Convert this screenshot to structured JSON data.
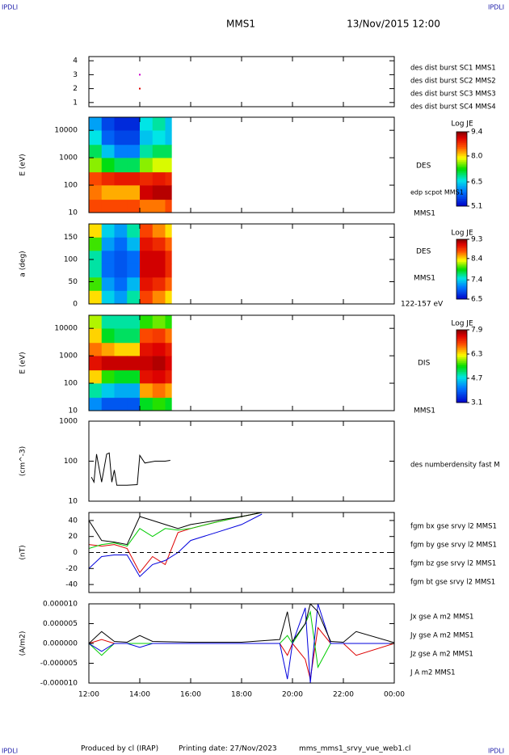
{
  "header": {
    "corner_label": "IPDLI",
    "spacecraft": "MMS1",
    "date": "13/Nov/2015 12:00"
  },
  "footer": {
    "producer": "Produced by cl (IRAP)",
    "printing": "Printing date: 27/Nov/2023",
    "file": "mms_mms1_srvy_vue_web1.cl"
  },
  "x_axis": {
    "xlim": [
      12,
      24
    ],
    "xticks": [
      {
        "value": 12,
        "label": "12:00"
      },
      {
        "value": 14,
        "label": "14:00"
      },
      {
        "value": 16,
        "label": "16:00"
      },
      {
        "value": 18,
        "label": "18:00"
      },
      {
        "value": 20,
        "label": "20:00"
      },
      {
        "value": 22,
        "label": "22:00"
      },
      {
        "value": 24,
        "label": "00:00"
      }
    ]
  },
  "chart_data": [
    {
      "type": "scatter",
      "ylim": [
        0.7,
        4.3
      ],
      "yticks": [
        1,
        2,
        3,
        4
      ],
      "series": [
        {
          "name": "des dist burst SC1 MMS1",
          "color": "#0000cc",
          "x": [],
          "values": []
        },
        {
          "name": "des dist burst SC2 MMS2",
          "color": "#cc00cc",
          "x": [
            14
          ],
          "values": [
            3
          ]
        },
        {
          "name": "des dist burst SC3 MMS3",
          "color": "#dd0000",
          "x": [
            14
          ],
          "values": [
            2
          ]
        },
        {
          "name": "des dist burst SC4 MMS4",
          "color": "#00bb00",
          "x": [],
          "values": []
        }
      ]
    },
    {
      "type": "heatmap",
      "ylabel": "E (eV)",
      "log_y": true,
      "ylim": [
        10,
        30000
      ],
      "yticks": [
        10,
        100,
        1000,
        10000
      ],
      "x": [
        12,
        12.5,
        13,
        13.5,
        14,
        14.5,
        15,
        15.25
      ],
      "ybins": [
        10,
        30,
        100,
        300,
        1000,
        3000,
        10000,
        30000
      ],
      "z": [
        [
          8.6,
          8.4,
          8.6,
          7.6,
          7.0,
          6.6,
          6.2
        ],
        [
          8.6,
          8.2,
          8.8,
          7.2,
          6.4,
          5.8,
          5.6
        ],
        [
          8.6,
          8.2,
          8.9,
          7.0,
          6.0,
          5.6,
          5.4
        ],
        [
          8.6,
          8.2,
          8.9,
          7.0,
          6.0,
          5.6,
          5.4
        ],
        [
          8.4,
          9.1,
          8.8,
          7.6,
          6.8,
          6.4,
          6.6
        ],
        [
          8.4,
          9.2,
          8.9,
          7.8,
          7.0,
          6.6,
          6.8
        ],
        [
          8.6,
          9.2,
          8.8,
          7.8,
          7.0,
          6.4,
          6.4
        ]
      ],
      "colorbar_title": "Log JE",
      "zlim": [
        5.1,
        9.4
      ],
      "zticks": [
        9.4,
        {
          "value": 8,
          "label": "8.0"
        },
        6.5,
        5.1
      ],
      "labels": [
        "DES",
        "edp scpot MMS1",
        "MMS1"
      ]
    },
    {
      "type": "heatmap",
      "ylabel": "a (deg)",
      "log_y": false,
      "ylim": [
        0,
        180
      ],
      "yticks": [
        0,
        50,
        100,
        150
      ],
      "x": [
        12,
        12.5,
        13,
        13.5,
        14,
        14.5,
        15,
        15.25
      ],
      "ybins": [
        0,
        30,
        60,
        90,
        120,
        150,
        180
      ],
      "z": [
        [
          8.4,
          8.0,
          7.6,
          7.6,
          8.0,
          8.4
        ],
        [
          7.4,
          7.2,
          7.0,
          7.0,
          7.2,
          7.4
        ],
        [
          7.2,
          7.0,
          6.9,
          6.9,
          7.0,
          7.2
        ],
        [
          7.6,
          7.3,
          7.0,
          7.0,
          7.3,
          7.6
        ],
        [
          8.8,
          9.0,
          9.1,
          9.1,
          9.0,
          8.8
        ],
        [
          8.6,
          8.9,
          9.1,
          9.1,
          8.9,
          8.6
        ],
        [
          8.4,
          8.7,
          8.9,
          8.9,
          8.7,
          8.4
        ]
      ],
      "colorbar_title": "Log JE",
      "zlim": [
        6.5,
        9.3
      ],
      "zticks": [
        9.3,
        8.4,
        7.4,
        6.5
      ],
      "labels": [
        "DES",
        "MMS1",
        "122-157 eV"
      ]
    },
    {
      "type": "heatmap",
      "ylabel": "E (eV)",
      "log_y": true,
      "ylim": [
        10,
        30000
      ],
      "yticks": [
        10,
        100,
        1000,
        10000
      ],
      "x": [
        12,
        12.5,
        13,
        13.5,
        14,
        14.5,
        15,
        15.25
      ],
      "ybins": [
        10,
        30,
        100,
        300,
        1000,
        3000,
        10000,
        30000
      ],
      "z": [
        [
          4.2,
          5.0,
          6.4,
          7.4,
          6.8,
          6.4,
          6.0
        ],
        [
          3.8,
          4.6,
          5.6,
          7.6,
          6.6,
          5.4,
          5.0
        ],
        [
          3.8,
          4.4,
          5.4,
          7.6,
          6.4,
          5.2,
          5.0
        ],
        [
          3.8,
          4.4,
          5.4,
          7.6,
          6.4,
          5.2,
          5.0
        ],
        [
          5.4,
          6.6,
          7.4,
          7.6,
          7.4,
          7.0,
          5.6
        ],
        [
          5.6,
          6.8,
          7.5,
          7.7,
          7.5,
          7.1,
          5.8
        ],
        [
          5.4,
          6.6,
          7.3,
          7.5,
          7.3,
          6.8,
          5.6
        ]
      ],
      "colorbar_title": "Log JE",
      "zlim": [
        3.1,
        7.9
      ],
      "zticks": [
        7.9,
        6.3,
        4.7,
        3.1
      ],
      "labels": [
        "DIS",
        "MMS1"
      ]
    },
    {
      "type": "line",
      "ylabel": "(cm^-3)",
      "log_y": true,
      "ylim": [
        10,
        1000
      ],
      "yticks": [
        10,
        100,
        1000
      ],
      "x": [
        12.1,
        12.2,
        12.3,
        12.5,
        12.7,
        12.8,
        12.9,
        13.0,
        13.1,
        13.5,
        13.9,
        14.0,
        14.2,
        14.6,
        15.0,
        15.2
      ],
      "series": [
        {
          "name": "des numberdensity fast M",
          "color": "#000000",
          "values": [
            40,
            30,
            150,
            30,
            150,
            160,
            30,
            60,
            25,
            25,
            26,
            140,
            90,
            100,
            100,
            105
          ]
        }
      ]
    },
    {
      "type": "line",
      "ylabel": "(nT)",
      "log_y": false,
      "ylim": [
        -50,
        50
      ],
      "yticks": [
        -40,
        -20,
        0,
        20,
        40
      ],
      "zero_line": true,
      "x": [
        12,
        12.5,
        13,
        13.5,
        14,
        14.5,
        15,
        15.5,
        16,
        17,
        18,
        18.8
      ],
      "series": [
        {
          "name": "fgm bx gse srvy l2 MMS1",
          "color": "#dd0000",
          "values": [
            10,
            8,
            10,
            5,
            -25,
            -5,
            -15,
            25,
            30,
            38,
            45,
            50
          ]
        },
        {
          "name": "fgm by gse srvy l2 MMS1",
          "color": "#00cc00",
          "values": [
            5,
            10,
            12,
            8,
            30,
            20,
            30,
            28,
            30,
            38,
            45,
            50
          ]
        },
        {
          "name": "fgm bz gse srvy l2 MMS1",
          "color": "#0000dd",
          "values": [
            -20,
            -5,
            -3,
            -3,
            -30,
            -15,
            -10,
            0,
            15,
            25,
            35,
            48
          ]
        },
        {
          "name": "fgm bt gse srvy l2 MMS1",
          "color": "#000000",
          "values": [
            40,
            15,
            13,
            10,
            45,
            40,
            35,
            30,
            35,
            40,
            45,
            50
          ]
        }
      ]
    },
    {
      "type": "line",
      "ylabel": "(A/m2)",
      "log_y": false,
      "ylim": [
        -1e-05,
        1e-05
      ],
      "yticks": [
        {
          "value": -1e-05,
          "label": "-0.000010"
        },
        {
          "value": -5e-06,
          "label": "-0.000005"
        },
        {
          "value": 0,
          "label": "0.000000"
        },
        {
          "value": 5e-06,
          "label": "0.000005"
        },
        {
          "value": 1e-05,
          "label": "0.000010"
        }
      ],
      "x": [
        12,
        12.5,
        13,
        13.5,
        14,
        14.5,
        16,
        18,
        19.5,
        19.8,
        20,
        20.5,
        20.7,
        21,
        21.5,
        22,
        22.5,
        24
      ],
      "series": [
        {
          "name": "Jx gse A m2 MMS1",
          "color": "#dd0000",
          "values": [
            0,
            1e-06,
            0,
            0,
            0,
            0,
            0,
            0,
            0,
            -3e-06,
            0,
            -4e-06,
            -9e-06,
            4e-06,
            0,
            0,
            -3e-06,
            0
          ]
        },
        {
          "name": "Jy gse A m2 MMS1",
          "color": "#00cc00",
          "values": [
            0,
            -3e-06,
            0,
            0,
            0,
            0,
            0,
            0,
            0,
            2e-06,
            0,
            5e-06,
            8e-06,
            -6e-06,
            0,
            0,
            0,
            0
          ]
        },
        {
          "name": "Jz gse A m2 MMS1",
          "color": "#0000dd",
          "values": [
            0,
            -2e-06,
            0,
            0,
            -1e-06,
            0,
            0,
            0,
            0,
            -9e-06,
            0,
            9e-06,
            -1e-05,
            1e-05,
            0,
            0,
            0,
            0
          ]
        },
        {
          "name": "J A m2 MMS1",
          "color": "#000000",
          "values": [
            0,
            3e-06,
            5e-07,
            3e-07,
            2e-06,
            5e-07,
            3e-07,
            3e-07,
            1e-06,
            8e-06,
            5e-07,
            5e-06,
            1e-05,
            8e-06,
            5e-07,
            3e-07,
            3e-06,
            2e-07
          ]
        }
      ]
    }
  ]
}
